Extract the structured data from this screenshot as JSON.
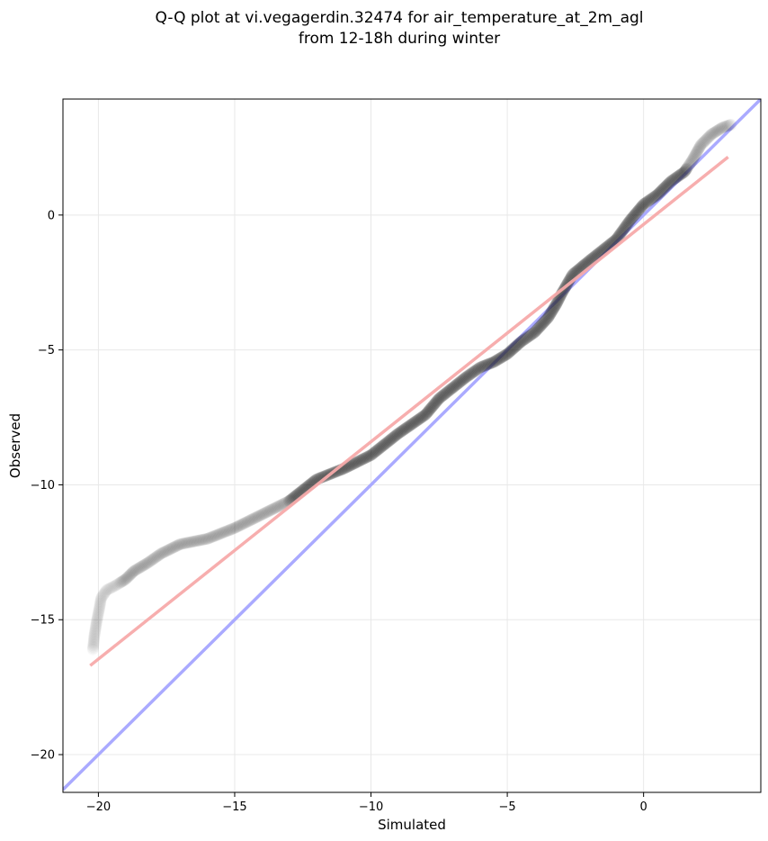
{
  "chart_data": {
    "type": "scatter",
    "title": "Q-Q plot at vi.vegagerdin.32474 for air_temperature_at_2m_agl",
    "subtitle": "from 12-18h during winter",
    "xlabel": "Simulated",
    "ylabel": "Observed",
    "xlim": [
      -21.3,
      4.3
    ],
    "ylim": [
      -21.4,
      4.3
    ],
    "x_ticks": [
      -20,
      -15,
      -10,
      -5,
      0
    ],
    "y_ticks": [
      -20,
      -15,
      -10,
      -5,
      0
    ],
    "x_tick_labels": [
      "−20",
      "−15",
      "−10",
      "−5",
      "0"
    ],
    "y_tick_labels": [
      "−20",
      "−15",
      "−10",
      "−5",
      "0"
    ],
    "grid": true,
    "colors": {
      "points": "#222222",
      "identity_line": "#aaaaff",
      "fit_line": "#f7aaaa",
      "grid": "#e8e8e8"
    },
    "identity_line": {
      "x": [
        -21.3,
        4.3
      ],
      "y": [
        -21.3,
        4.3
      ]
    },
    "fit_line": {
      "x": [
        -20.3,
        3.1
      ],
      "y": [
        -16.7,
        2.15
      ]
    },
    "quantile_curve": [
      [
        -20.2,
        -16.1
      ],
      [
        -20.15,
        -15.6
      ],
      [
        -20.05,
        -15.0
      ],
      [
        -19.95,
        -14.5
      ],
      [
        -19.9,
        -14.2
      ],
      [
        -19.7,
        -13.9
      ],
      [
        -19.4,
        -13.75
      ],
      [
        -19.0,
        -13.5
      ],
      [
        -18.7,
        -13.2
      ],
      [
        -18.2,
        -12.9
      ],
      [
        -17.7,
        -12.55
      ],
      [
        -17.0,
        -12.2
      ],
      [
        -16.0,
        -12.0
      ],
      [
        -15.0,
        -11.6
      ],
      [
        -14.0,
        -11.1
      ],
      [
        -13.0,
        -10.6
      ],
      [
        -12.0,
        -9.8
      ],
      [
        -11.0,
        -9.4
      ],
      [
        -10.0,
        -8.9
      ],
      [
        -9.0,
        -8.1
      ],
      [
        -8.0,
        -7.4
      ],
      [
        -7.5,
        -6.8
      ],
      [
        -7.0,
        -6.4
      ],
      [
        -6.5,
        -6.0
      ],
      [
        -6.0,
        -5.65
      ],
      [
        -5.5,
        -5.45
      ],
      [
        -5.0,
        -5.15
      ],
      [
        -4.5,
        -4.7
      ],
      [
        -4.0,
        -4.35
      ],
      [
        -3.5,
        -3.8
      ],
      [
        -3.2,
        -3.3
      ],
      [
        -3.0,
        -2.9
      ],
      [
        -2.6,
        -2.2
      ],
      [
        -2.0,
        -1.7
      ],
      [
        -1.5,
        -1.3
      ],
      [
        -1.0,
        -0.9
      ],
      [
        -0.5,
        -0.2
      ],
      [
        0.0,
        0.4
      ],
      [
        0.5,
        0.75
      ],
      [
        1.0,
        1.25
      ],
      [
        1.5,
        1.6
      ],
      [
        1.8,
        2.05
      ],
      [
        2.1,
        2.6
      ],
      [
        2.5,
        3.0
      ],
      [
        2.9,
        3.25
      ],
      [
        3.2,
        3.35
      ]
    ]
  }
}
